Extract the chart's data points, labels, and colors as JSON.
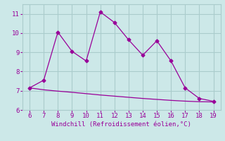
{
  "upper_x": [
    6,
    7,
    8,
    9,
    10,
    11,
    12,
    13,
    14,
    15,
    16,
    17,
    18,
    19
  ],
  "upper_y": [
    7.15,
    7.55,
    10.05,
    9.05,
    8.55,
    11.1,
    10.55,
    9.65,
    8.85,
    9.6,
    8.55,
    7.15,
    6.6,
    6.45
  ],
  "lower_x": [
    6,
    7,
    8,
    9,
    10,
    11,
    12,
    13,
    14,
    15,
    16,
    17,
    18,
    19
  ],
  "lower_y": [
    7.15,
    7.05,
    6.98,
    6.92,
    6.85,
    6.78,
    6.72,
    6.66,
    6.6,
    6.55,
    6.5,
    6.46,
    6.43,
    6.42
  ],
  "line_color": "#990099",
  "bg_color": "#cce8e8",
  "grid_color": "#aacccc",
  "xlabel": "Windchill (Refroidissement éolien,°C)",
  "xlabel_color": "#990099",
  "xlim": [
    5.5,
    19.5
  ],
  "ylim": [
    6.0,
    11.5
  ],
  "xticks": [
    6,
    7,
    8,
    9,
    10,
    11,
    12,
    13,
    14,
    15,
    16,
    17,
    18,
    19
  ],
  "yticks": [
    6,
    7,
    8,
    9,
    10,
    11
  ],
  "tick_color": "#990099",
  "marker": "D",
  "markersize": 2.5
}
